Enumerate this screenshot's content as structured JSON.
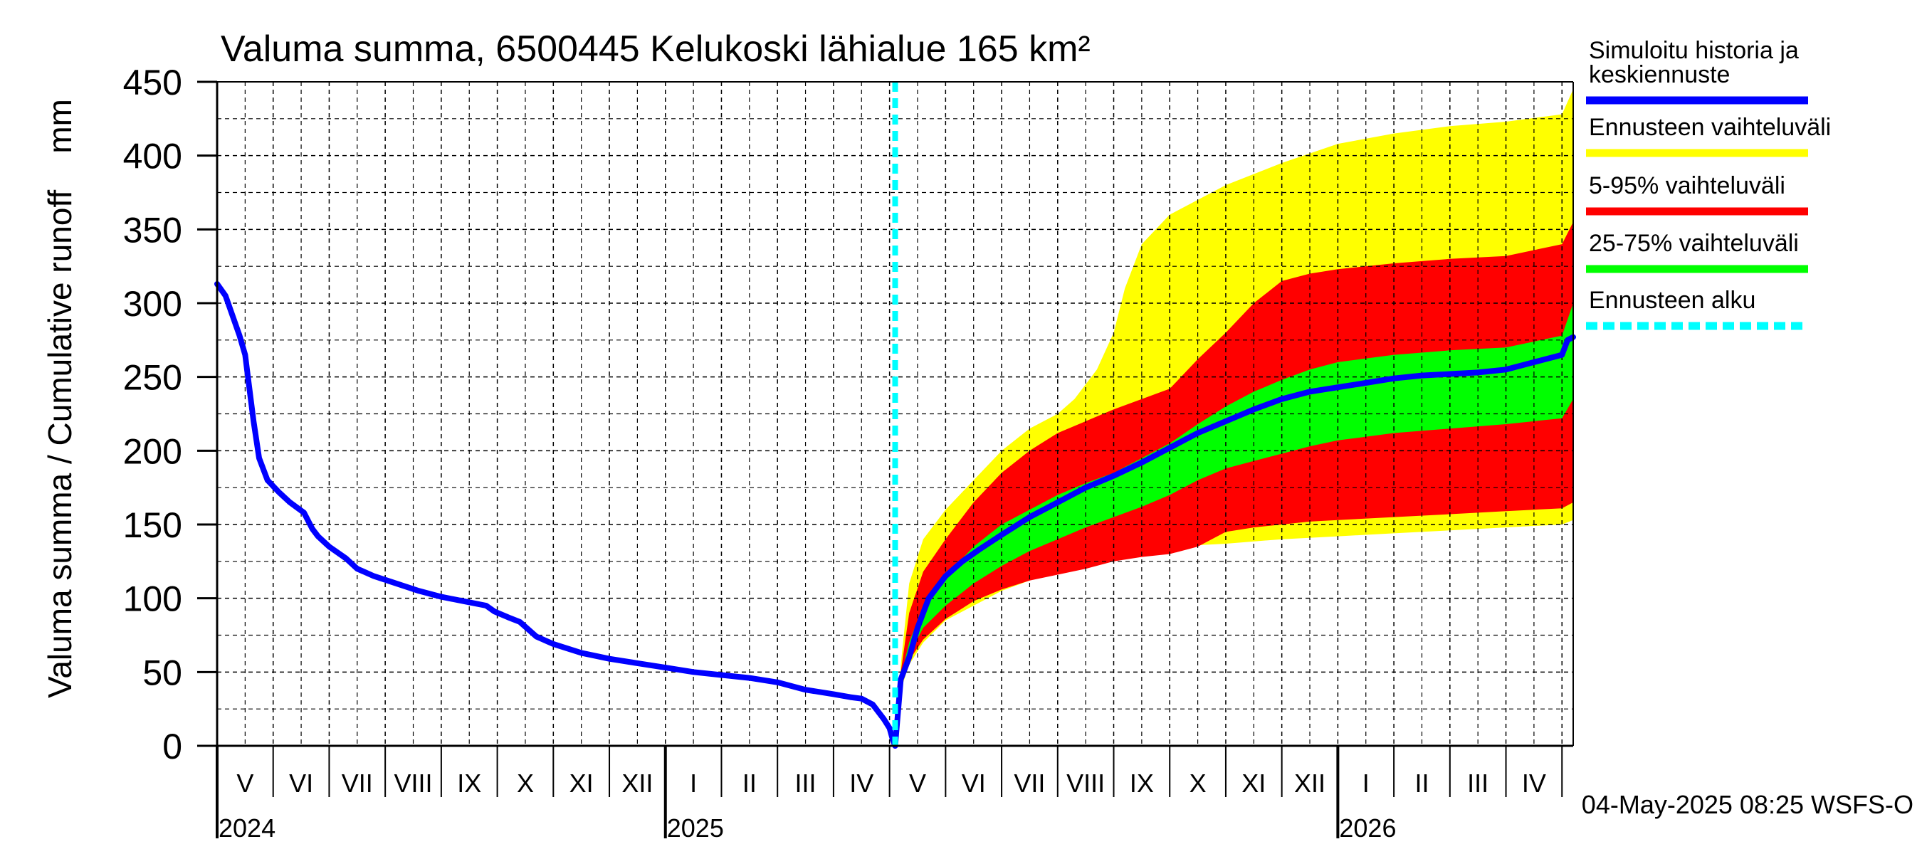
{
  "chart_data": {
    "type": "area",
    "title": "Valuma summa, 6500445 Kelukoski lähialue 165 km²",
    "ylabel": "Valuma summa / Cumulative runoff    mm",
    "xlabel": "",
    "ylim": [
      0,
      450
    ],
    "yticks": [
      "0",
      "50",
      "100",
      "150",
      "200",
      "250",
      "300",
      "350",
      "400",
      "450"
    ],
    "ytick_values": [
      0,
      50,
      100,
      150,
      200,
      250,
      300,
      350,
      400,
      450
    ],
    "grid": true,
    "x_domain": [
      0,
      24.2
    ],
    "months": [
      {
        "label": "V",
        "start": 0,
        "end": 1
      },
      {
        "label": "VI",
        "start": 1,
        "end": 2
      },
      {
        "label": "VII",
        "start": 2,
        "end": 3
      },
      {
        "label": "VIII",
        "start": 3,
        "end": 4
      },
      {
        "label": "IX",
        "start": 4,
        "end": 5
      },
      {
        "label": "X",
        "start": 5,
        "end": 6
      },
      {
        "label": "XI",
        "start": 6,
        "end": 7
      },
      {
        "label": "XII",
        "start": 7,
        "end": 8
      },
      {
        "label": "I",
        "start": 8,
        "end": 9
      },
      {
        "label": "II",
        "start": 9,
        "end": 10
      },
      {
        "label": "III",
        "start": 10,
        "end": 11
      },
      {
        "label": "IV",
        "start": 11,
        "end": 12
      },
      {
        "label": "V",
        "start": 12,
        "end": 13
      },
      {
        "label": "VI",
        "start": 13,
        "end": 14
      },
      {
        "label": "VII",
        "start": 14,
        "end": 15
      },
      {
        "label": "VIII",
        "start": 15,
        "end": 16
      },
      {
        "label": "IX",
        "start": 16,
        "end": 17
      },
      {
        "label": "X",
        "start": 17,
        "end": 18
      },
      {
        "label": "XI",
        "start": 18,
        "end": 19
      },
      {
        "label": "XII",
        "start": 19,
        "end": 20
      },
      {
        "label": "I",
        "start": 20,
        "end": 21
      },
      {
        "label": "II",
        "start": 21,
        "end": 22
      },
      {
        "label": "III",
        "start": 22,
        "end": 23
      },
      {
        "label": "IV",
        "start": 23,
        "end": 24
      },
      {
        "label": "",
        "start": 24,
        "end": 24.2
      }
    ],
    "years": [
      {
        "label": "2024",
        "x": 0
      },
      {
        "label": "2025",
        "x": 8
      },
      {
        "label": "2026",
        "x": 20
      }
    ],
    "forecast_start_x": 12.1,
    "history": {
      "x": [
        0,
        0.15,
        0.4,
        0.5,
        0.55,
        0.65,
        0.75,
        0.9,
        1.1,
        1.3,
        1.55,
        1.7,
        1.8,
        2.0,
        2.3,
        2.5,
        2.8,
        3.2,
        3.6,
        4.0,
        4.4,
        4.8,
        4.95,
        5.2,
        5.4,
        5.7,
        6.0,
        6.5,
        7.0,
        7.5,
        8.0,
        8.5,
        9.0,
        9.5,
        10.0,
        10.5,
        11.0,
        11.3,
        11.5,
        11.7,
        11.9,
        12.0,
        12.05,
        12.1
      ],
      "y": [
        313,
        305,
        278,
        265,
        250,
        220,
        195,
        180,
        172,
        165,
        158,
        147,
        142,
        135,
        127,
        120,
        115,
        110,
        105,
        101,
        98,
        95,
        91,
        87,
        84,
        74,
        69,
        63,
        59,
        56,
        53,
        50,
        48,
        46,
        43,
        38,
        35,
        33,
        32,
        28,
        18,
        12,
        5,
        0
      ]
    },
    "series": [
      {
        "name": "Ennusteen vaihteluväli",
        "color": "#ffff00",
        "x": [
          12.1,
          12.2,
          12.35,
          12.6,
          13.0,
          13.5,
          14.0,
          14.5,
          15.0,
          15.3,
          15.7,
          16.0,
          16.2,
          16.5,
          17.0,
          18.0,
          19.0,
          20.0,
          21.0,
          22.0,
          23.0,
          24.0,
          24.2
        ],
        "upper": [
          0,
          55,
          110,
          140,
          160,
          180,
          200,
          215,
          225,
          235,
          255,
          280,
          310,
          340,
          360,
          380,
          395,
          408,
          415,
          420,
          423,
          428,
          445
        ],
        "lower": [
          0,
          38,
          55,
          70,
          85,
          95,
          105,
          112,
          118,
          122,
          125,
          128,
          130,
          133,
          135,
          137,
          140,
          142,
          144,
          146,
          148,
          150,
          153
        ]
      },
      {
        "name": "5-95% vaihteluväli",
        "color": "#ff0000",
        "x": [
          12.1,
          12.2,
          12.35,
          12.6,
          13.0,
          13.5,
          14.0,
          14.5,
          15.0,
          15.5,
          16.0,
          16.5,
          17.0,
          17.5,
          18.0,
          18.5,
          19.0,
          19.5,
          20.0,
          21.0,
          22.0,
          23.0,
          24.0,
          24.2
        ],
        "upper": [
          0,
          50,
          90,
          118,
          140,
          165,
          185,
          200,
          212,
          220,
          228,
          235,
          242,
          262,
          280,
          300,
          315,
          320,
          323,
          327,
          330,
          332,
          340,
          355
        ],
        "lower": [
          0,
          40,
          58,
          72,
          86,
          98,
          106,
          112,
          116,
          120,
          125,
          128,
          130,
          135,
          145,
          148,
          150,
          152,
          153,
          155,
          157,
          159,
          161,
          165
        ]
      },
      {
        "name": "25-75% vaihteluväli",
        "color": "#00ff00",
        "x": [
          12.1,
          12.2,
          12.35,
          12.6,
          13.0,
          13.5,
          14.0,
          14.5,
          15.0,
          15.5,
          16.0,
          16.5,
          17.0,
          17.5,
          18.0,
          18.5,
          19.0,
          19.5,
          20.0,
          21.0,
          22.0,
          23.0,
          24.0,
          24.2
        ],
        "upper": [
          0,
          47,
          70,
          95,
          115,
          135,
          150,
          160,
          170,
          178,
          185,
          195,
          205,
          218,
          230,
          240,
          248,
          255,
          260,
          265,
          268,
          270,
          278,
          300
        ],
        "lower": [
          0,
          45,
          62,
          80,
          95,
          110,
          122,
          132,
          140,
          148,
          155,
          162,
          170,
          180,
          188,
          193,
          198,
          203,
          207,
          212,
          215,
          218,
          222,
          235
        ]
      },
      {
        "name": "Simuloitu historia ja keskiennuste",
        "color": "#0000ff",
        "x": [
          12.1,
          12.2,
          12.35,
          12.5,
          12.7,
          13.0,
          13.3,
          13.6,
          14.0,
          14.5,
          15.0,
          15.5,
          16.0,
          16.5,
          17.0,
          17.3,
          17.5,
          18.0,
          18.5,
          19.0,
          19.5,
          20.0,
          20.5,
          21.0,
          21.5,
          22.0,
          22.5,
          23.0,
          23.5,
          24.0,
          24.1,
          24.2
        ],
        "y": [
          0,
          45,
          60,
          80,
          100,
          115,
          125,
          133,
          143,
          155,
          165,
          175,
          183,
          192,
          202,
          208,
          212,
          220,
          228,
          235,
          240,
          243,
          246,
          249,
          251,
          252,
          253,
          255,
          260,
          265,
          275,
          277
        ]
      }
    ],
    "legend": [
      {
        "label": "Simuloitu historia ja keskiennuste",
        "color": "#0000ff",
        "style": "solid"
      },
      {
        "label": "Ennusteen vaihteluväli",
        "color": "#ffff00",
        "style": "solid"
      },
      {
        "label": "5-95% vaihteluväli",
        "color": "#ff0000",
        "style": "solid"
      },
      {
        "label": "25-75% vaihteluväli",
        "color": "#00ff00",
        "style": "solid"
      },
      {
        "label": "Ennusteen alku",
        "color": "#00ffff",
        "style": "dashed"
      }
    ],
    "legend_position": "right",
    "timestamp": "04-May-2025 08:25 WSFS-O"
  }
}
